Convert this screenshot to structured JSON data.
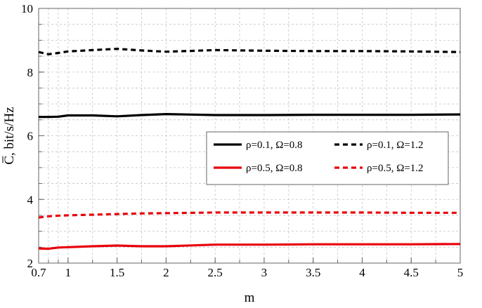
{
  "chart_data": {
    "type": "line",
    "xlabel": "m",
    "ylabel": "C̅, bit/s/Hz",
    "xlim": [
      0.7,
      5
    ],
    "ylim": [
      2,
      10
    ],
    "xticks": [
      "0.7",
      "1",
      "1.5",
      "2",
      "2.5",
      "3",
      "3.5",
      "4",
      "4.5",
      "5"
    ],
    "xtick_values": [
      0.7,
      1,
      1.5,
      2,
      2.5,
      3,
      3.5,
      4,
      4.5,
      5
    ],
    "yticks": [
      "2",
      "4",
      "6",
      "8",
      "10"
    ],
    "ytick_values": [
      2,
      4,
      6,
      8,
      10
    ],
    "grid": true,
    "legend_position": "center-right",
    "series": [
      {
        "name": "ρ=0.1, Ω=0.8",
        "color": "#000000",
        "dashed": false,
        "x": [
          0.7,
          0.8,
          0.9,
          1.0,
          1.25,
          1.5,
          1.75,
          2.0,
          2.5,
          3.0,
          3.5,
          4.0,
          4.5,
          5.0
        ],
        "y": [
          6.59,
          6.59,
          6.6,
          6.64,
          6.64,
          6.61,
          6.65,
          6.68,
          6.65,
          6.65,
          6.66,
          6.66,
          6.66,
          6.67
        ]
      },
      {
        "name": "ρ=0.1, Ω=1.2",
        "color": "#000000",
        "dashed": true,
        "x": [
          0.7,
          0.8,
          0.9,
          1.0,
          1.25,
          1.5,
          1.75,
          2.0,
          2.5,
          3.0,
          3.5,
          4.0,
          4.5,
          5.0
        ],
        "y": [
          8.63,
          8.56,
          8.6,
          8.65,
          8.69,
          8.73,
          8.68,
          8.64,
          8.69,
          8.67,
          8.66,
          8.66,
          8.65,
          8.63
        ]
      },
      {
        "name": "ρ=0.5, Ω=0.8",
        "color": "#e8000b",
        "dashed": false,
        "x": [
          0.7,
          0.8,
          0.9,
          1.0,
          1.25,
          1.5,
          1.75,
          2.0,
          2.5,
          3.0,
          3.5,
          4.0,
          4.5,
          5.0
        ],
        "y": [
          2.46,
          2.45,
          2.49,
          2.5,
          2.53,
          2.55,
          2.53,
          2.53,
          2.58,
          2.58,
          2.59,
          2.59,
          2.59,
          2.6
        ]
      },
      {
        "name": "ρ=0.5, Ω=1.2",
        "color": "#e8000b",
        "dashed": true,
        "x": [
          0.7,
          0.8,
          0.9,
          1.0,
          1.25,
          1.5,
          1.75,
          2.0,
          2.5,
          3.0,
          3.5,
          4.0,
          4.5,
          5.0
        ],
        "y": [
          3.43,
          3.47,
          3.49,
          3.5,
          3.52,
          3.54,
          3.56,
          3.57,
          3.59,
          3.59,
          3.59,
          3.59,
          3.58,
          3.58
        ]
      }
    ]
  }
}
